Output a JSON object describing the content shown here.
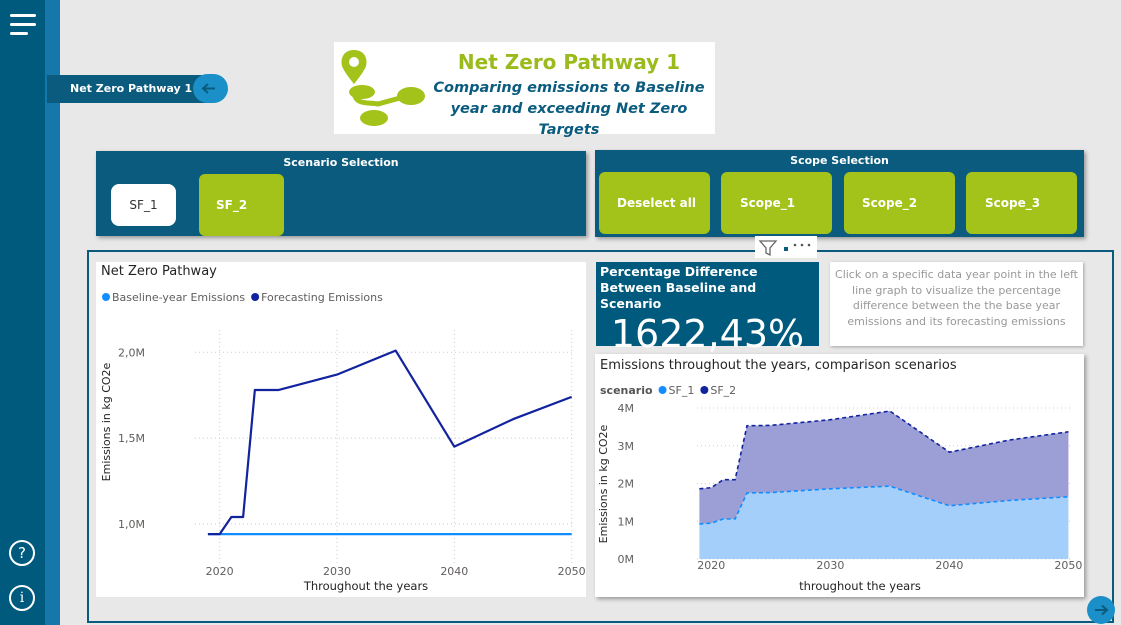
{
  "menu": {
    "tab": "Net Zero Pathway 1"
  },
  "icons": {
    "help": "?",
    "info": "i"
  },
  "header": {
    "title": "Net Zero Pathway 1",
    "subtitle_lines": [
      "Comparing emissions to Baseline",
      "year and exceeding Net Zero Targets"
    ]
  },
  "scenario_selection": {
    "title": "Scenario Selection",
    "buttons": [
      "SF_1",
      "SF_2"
    ]
  },
  "scope_selection": {
    "title": "Scope Selection",
    "buttons": [
      "Deselect all",
      "Scope_1",
      "Scope_2",
      "Scope_3"
    ]
  },
  "kpi": {
    "title": "Percentage Difference Between Baseline and Scenario",
    "value": "1622,43%"
  },
  "info": {
    "text": "Click on a specific data year point in the left line graph to visualize the percentage difference between the the base year emissions and its forecasting emissions"
  },
  "chart_data": [
    {
      "type": "line",
      "title": "Net Zero Pathway",
      "y_label": "Emissions in kg CO2e",
      "x_label": "Throughout the years",
      "x": [
        2019,
        2020,
        2021,
        2022,
        2023,
        2025,
        2030,
        2035,
        2040,
        2045,
        2050
      ],
      "series": [
        {
          "name": "Baseline-year Emissions",
          "color": "#118dff",
          "values": [
            0.94,
            0.94,
            0.94,
            0.94,
            0.94,
            0.94,
            0.94,
            0.94,
            0.94,
            0.94,
            0.94
          ]
        },
        {
          "name": "Forecasting Emissions",
          "color": "#12239e",
          "values": [
            0.94,
            0.94,
            1.04,
            1.04,
            1.78,
            1.78,
            1.87,
            2.01,
            1.45,
            1.61,
            1.74
          ]
        }
      ],
      "xlim": [
        2017.9,
        2050.2
      ],
      "ylim": [
        0.76,
        2.13
      ],
      "xticks": [
        2020,
        2030,
        2040,
        2050
      ],
      "yticks": [
        {
          "value": 1,
          "label": "1,0M"
        },
        {
          "value": 1.5,
          "label": "1,5M"
        },
        {
          "value": 2,
          "label": "2,0M"
        }
      ],
      "grid": true
    },
    {
      "type": "area",
      "stacked": true,
      "title": "Emissions throughout the years, comparison scenarios",
      "legend_title": "scenario",
      "y_label": "Emissions in kg CO2e",
      "x_label": "throughout the years",
      "x": [
        2019,
        2020,
        2021,
        2022,
        2023,
        2025,
        2030,
        2035,
        2040,
        2045,
        2050
      ],
      "series": [
        {
          "name": "SF_1",
          "color": "#118dff",
          "area_color": "#a3cffa",
          "values": [
            0.93,
            0.95,
            1.06,
            1.06,
            1.75,
            1.76,
            1.86,
            1.93,
            1.41,
            1.55,
            1.65
          ]
        },
        {
          "name": "SF_2",
          "color": "#12239e",
          "area_color": "#9c9ed6",
          "values": [
            0.93,
            0.94,
            1.04,
            1.04,
            1.78,
            1.78,
            1.83,
            1.99,
            1.42,
            1.6,
            1.72
          ]
        }
      ],
      "xlim": [
        2018.8,
        2050.3
      ],
      "ylim": [
        0,
        4.08
      ],
      "xticks": [
        2020,
        2030,
        2040,
        2050
      ],
      "yticks": [
        {
          "value": 0,
          "label": "0M"
        },
        {
          "value": 1,
          "label": "1M"
        },
        {
          "value": 2,
          "label": "2M"
        },
        {
          "value": 3,
          "label": "3M"
        },
        {
          "value": 4,
          "label": "4M"
        }
      ],
      "grid": true
    }
  ]
}
